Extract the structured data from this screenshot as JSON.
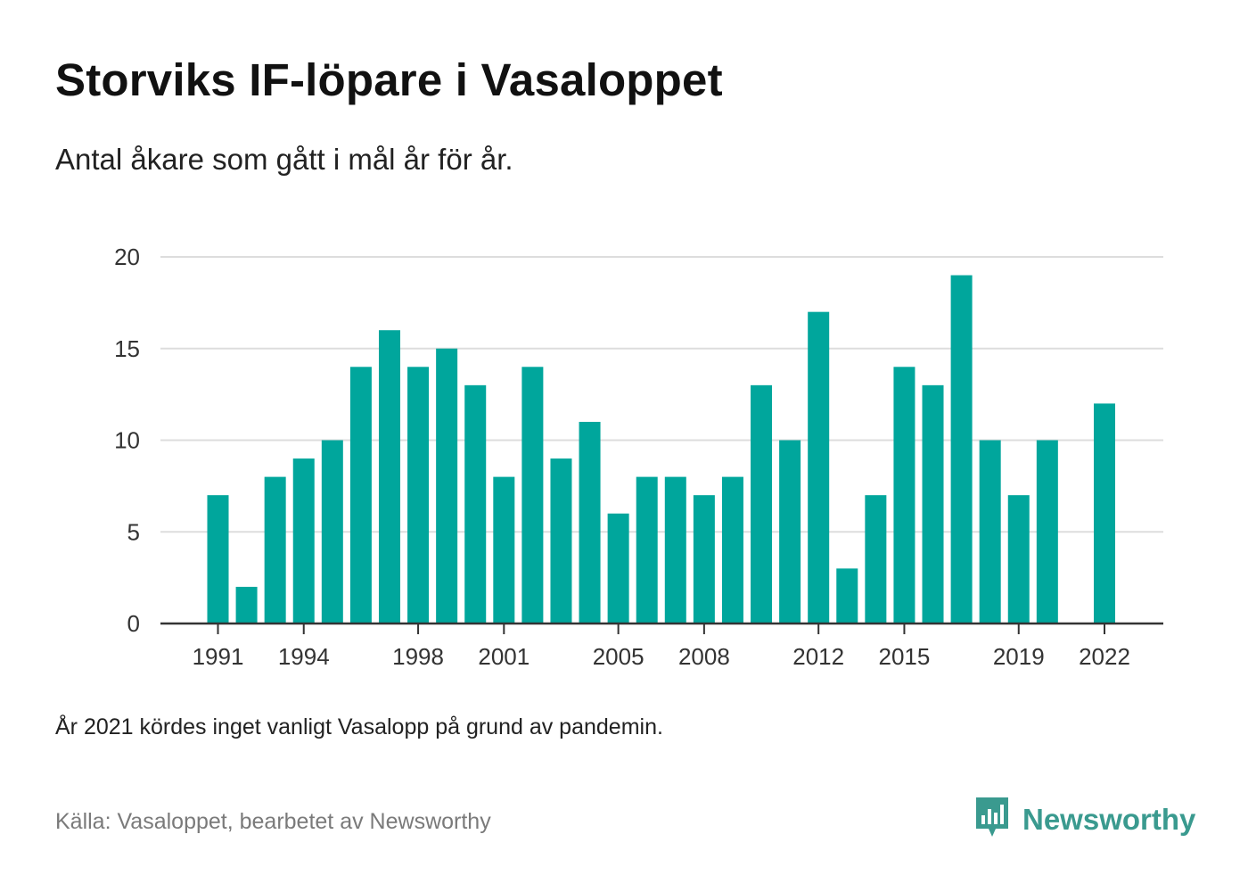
{
  "title": "Storviks IF-löpare i Vasaloppet",
  "subtitle": "Antal åkare som gått i mål år för år.",
  "note": "År 2021 kördes inget vanligt Vasalopp på grund av pandemin.",
  "source": "Källa: Vasaloppet, bearbetet av Newsworthy",
  "brand": {
    "name": "Newsworthy",
    "icon": "newsworthy-logo-icon",
    "color": "#3a9a8f"
  },
  "colors": {
    "bar": "#00a69c",
    "grid": "#dddddd",
    "axis": "#333333"
  },
  "chart_data": {
    "type": "bar",
    "title": "Storviks IF-löpare i Vasaloppet",
    "subtitle": "Antal åkare som gått i mål år för år.",
    "xlabel": "",
    "ylabel": "",
    "ylim": [
      0,
      20
    ],
    "yticks": [
      0,
      5,
      10,
      15,
      20
    ],
    "xticks": [
      1991,
      1994,
      1998,
      2001,
      2005,
      2008,
      2012,
      2015,
      2019,
      2022
    ],
    "grid": true,
    "legend": "none",
    "categories": [
      1991,
      1992,
      1993,
      1994,
      1995,
      1996,
      1997,
      1998,
      1999,
      2000,
      2001,
      2002,
      2003,
      2004,
      2005,
      2006,
      2007,
      2008,
      2009,
      2010,
      2011,
      2012,
      2013,
      2014,
      2015,
      2016,
      2017,
      2018,
      2019,
      2020,
      2021,
      2022
    ],
    "values": [
      7,
      2,
      8,
      9,
      10,
      14,
      16,
      14,
      15,
      13,
      8,
      14,
      9,
      11,
      6,
      8,
      8,
      7,
      8,
      13,
      10,
      17,
      3,
      7,
      14,
      13,
      19,
      10,
      7,
      10,
      null,
      12
    ]
  }
}
